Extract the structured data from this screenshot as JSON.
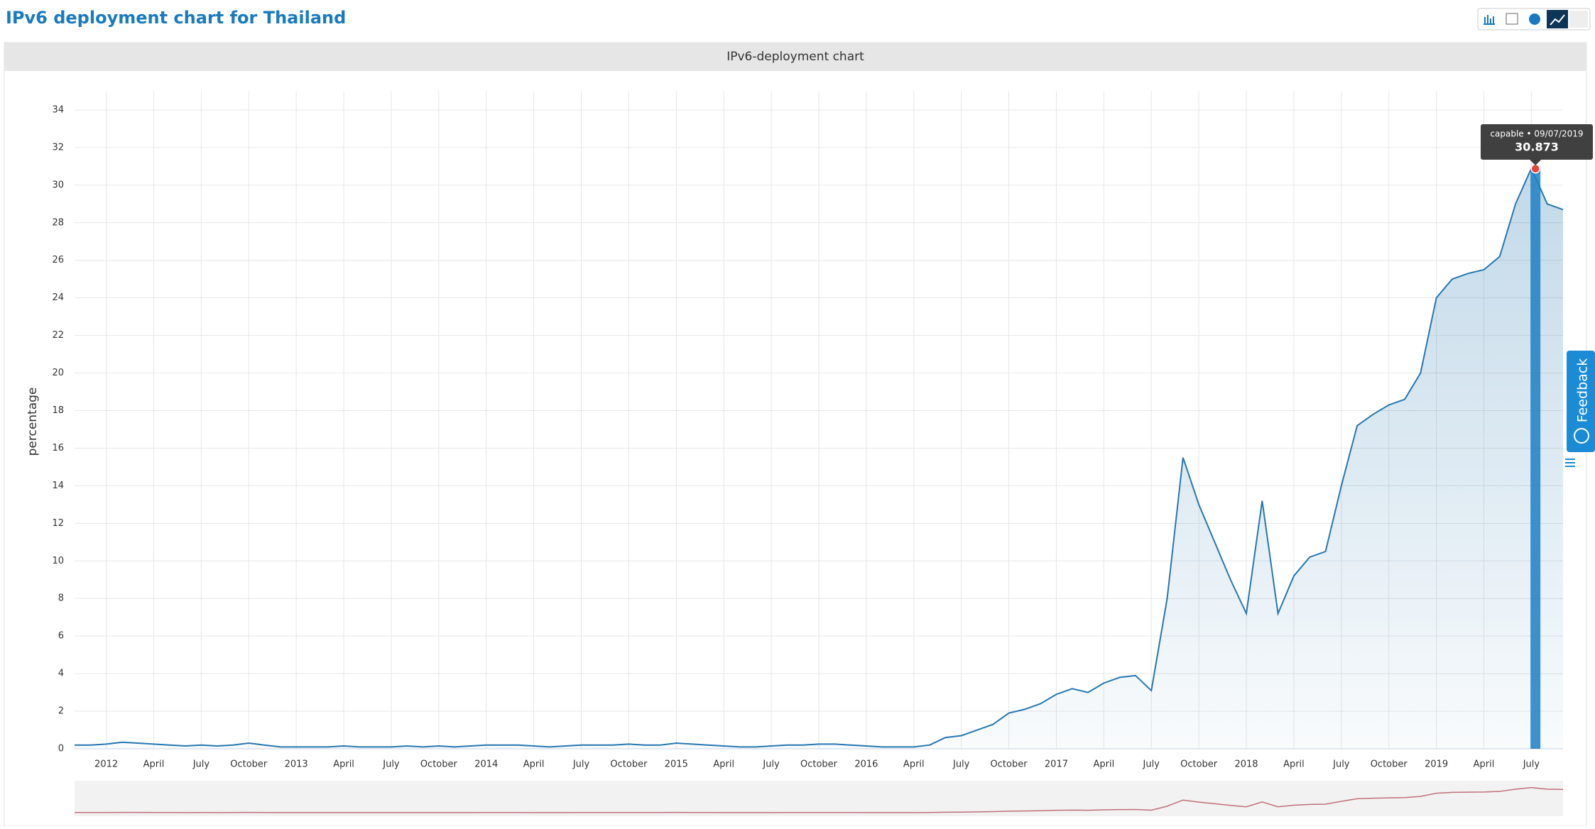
{
  "page": {
    "title": "IPv6 deployment chart for Thailand",
    "feedback": "Feedback"
  },
  "chart_data": {
    "type": "line",
    "title": "IPv6-deployment chart",
    "y_label": "percentage",
    "x": [
      "2011-11",
      "2011-12",
      "2012-01",
      "2012-02",
      "2012-03",
      "2012-04",
      "2012-05",
      "2012-06",
      "2012-07",
      "2012-08",
      "2012-09",
      "2012-10",
      "2012-11",
      "2012-12",
      "2013-01",
      "2013-02",
      "2013-03",
      "2013-04",
      "2013-05",
      "2013-06",
      "2013-07",
      "2013-08",
      "2013-09",
      "2013-10",
      "2013-11",
      "2013-12",
      "2014-01",
      "2014-02",
      "2014-03",
      "2014-04",
      "2014-05",
      "2014-06",
      "2014-07",
      "2014-08",
      "2014-09",
      "2014-10",
      "2014-11",
      "2014-12",
      "2015-01",
      "2015-02",
      "2015-03",
      "2015-04",
      "2015-05",
      "2015-06",
      "2015-07",
      "2015-08",
      "2015-09",
      "2015-10",
      "2015-11",
      "2015-12",
      "2016-01",
      "2016-02",
      "2016-03",
      "2016-04",
      "2016-05",
      "2016-06",
      "2016-07",
      "2016-08",
      "2016-09",
      "2016-10",
      "2016-11",
      "2016-12",
      "2017-01",
      "2017-02",
      "2017-03",
      "2017-04",
      "2017-05",
      "2017-06",
      "2017-07",
      "2017-08",
      "2017-09",
      "2017-10",
      "2017-11",
      "2017-12",
      "2018-01",
      "2018-02",
      "2018-03",
      "2018-04",
      "2018-05",
      "2018-06",
      "2018-07",
      "2018-08",
      "2018-09",
      "2018-10",
      "2018-11",
      "2018-12",
      "2019-01",
      "2019-02",
      "2019-03",
      "2019-04",
      "2019-05",
      "2019-06",
      "2019-07",
      "2019-08",
      "2019-09"
    ],
    "series": [
      {
        "name": "capable",
        "color": "#2677b0",
        "values": [
          0.2,
          0.2,
          0.25,
          0.35,
          0.3,
          0.25,
          0.2,
          0.15,
          0.2,
          0.15,
          0.2,
          0.3,
          0.2,
          0.1,
          0.1,
          0.1,
          0.1,
          0.15,
          0.1,
          0.1,
          0.1,
          0.15,
          0.1,
          0.15,
          0.1,
          0.15,
          0.2,
          0.2,
          0.2,
          0.15,
          0.1,
          0.15,
          0.2,
          0.2,
          0.2,
          0.25,
          0.2,
          0.2,
          0.3,
          0.25,
          0.2,
          0.15,
          0.1,
          0.1,
          0.15,
          0.2,
          0.2,
          0.25,
          0.25,
          0.2,
          0.15,
          0.1,
          0.1,
          0.1,
          0.2,
          0.6,
          0.7,
          1.0,
          1.3,
          1.9,
          2.1,
          2.4,
          2.9,
          3.2,
          3.0,
          3.5,
          3.8,
          3.9,
          3.1,
          8.0,
          15.5,
          13.0,
          11.0,
          9.0,
          7.2,
          13.2,
          7.2,
          9.2,
          10.2,
          10.5,
          14.0,
          17.2,
          17.8,
          18.3,
          18.6,
          20.0,
          24.0,
          25.0,
          25.3,
          25.5,
          26.2,
          29.0,
          30.9,
          29.0,
          28.7
        ]
      }
    ],
    "xlim": [
      "2011-11",
      "2019-09"
    ],
    "xticks": [
      {
        "value": "2012-01",
        "label": "2012"
      },
      {
        "value": "2012-04",
        "label": "April"
      },
      {
        "value": "2012-07",
        "label": "July"
      },
      {
        "value": "2012-10",
        "label": "October"
      },
      {
        "value": "2013-01",
        "label": "2013"
      },
      {
        "value": "2013-04",
        "label": "April"
      },
      {
        "value": "2013-07",
        "label": "July"
      },
      {
        "value": "2013-10",
        "label": "October"
      },
      {
        "value": "2014-01",
        "label": "2014"
      },
      {
        "value": "2014-04",
        "label": "April"
      },
      {
        "value": "2014-07",
        "label": "July"
      },
      {
        "value": "2014-10",
        "label": "October"
      },
      {
        "value": "2015-01",
        "label": "2015"
      },
      {
        "value": "2015-04",
        "label": "April"
      },
      {
        "value": "2015-07",
        "label": "July"
      },
      {
        "value": "2015-10",
        "label": "October"
      },
      {
        "value": "2016-01",
        "label": "2016"
      },
      {
        "value": "2016-04",
        "label": "April"
      },
      {
        "value": "2016-07",
        "label": "July"
      },
      {
        "value": "2016-10",
        "label": "October"
      },
      {
        "value": "2017-01",
        "label": "2017"
      },
      {
        "value": "2017-04",
        "label": "April"
      },
      {
        "value": "2017-07",
        "label": "July"
      },
      {
        "value": "2017-10",
        "label": "October"
      },
      {
        "value": "2018-01",
        "label": "2018"
      },
      {
        "value": "2018-04",
        "label": "April"
      },
      {
        "value": "2018-07",
        "label": "July"
      },
      {
        "value": "2018-10",
        "label": "October"
      },
      {
        "value": "2019-01",
        "label": "2019"
      },
      {
        "value": "2019-04",
        "label": "April"
      },
      {
        "value": "2019-07",
        "label": "July"
      }
    ],
    "ylim": [
      0,
      35
    ],
    "yticks": [
      0,
      2,
      4,
      6,
      8,
      10,
      12,
      14,
      16,
      18,
      20,
      22,
      24,
      26,
      28,
      30,
      32,
      34
    ],
    "grid": true,
    "tooltip": {
      "header": "capable • 09/07/2019",
      "value": 30.873
    }
  }
}
